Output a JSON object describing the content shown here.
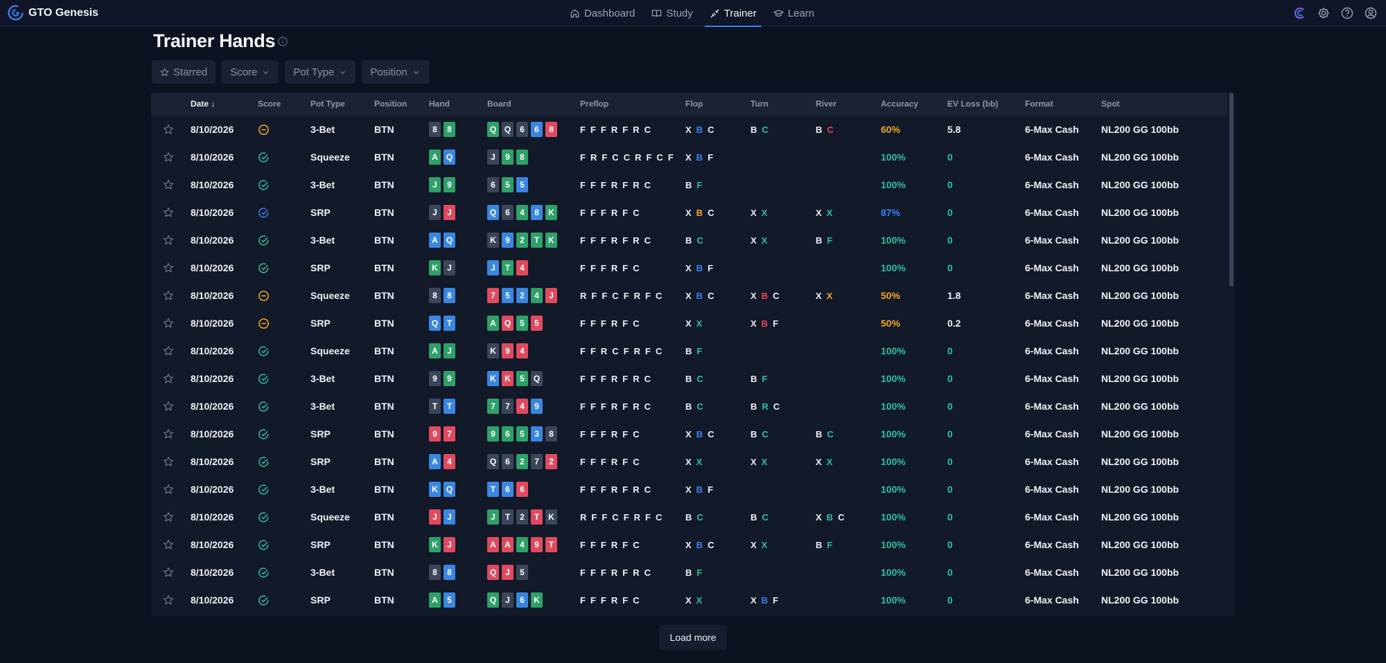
{
  "app": {
    "name": "GTO Genesis"
  },
  "nav": [
    {
      "label": "Dashboard",
      "icon": "home-icon",
      "active": false
    },
    {
      "label": "Study",
      "icon": "book-icon",
      "active": false
    },
    {
      "label": "Trainer",
      "icon": "trainer-icon",
      "active": true
    },
    {
      "label": "Learn",
      "icon": "graduation-cap-icon",
      "active": false
    }
  ],
  "top_icons": [
    "gto-logo-icon",
    "gear-icon",
    "help-icon",
    "user-icon"
  ],
  "page": {
    "title": "Trainer Hands"
  },
  "filters": [
    {
      "label": "Starred",
      "icon": "star-icon"
    },
    {
      "label": "Score",
      "icon": "chevron-down-icon"
    },
    {
      "label": "Pot Type",
      "icon": "chevron-down-icon"
    },
    {
      "label": "Position",
      "icon": "chevron-down-icon"
    }
  ],
  "columns": [
    "Date",
    "Score",
    "Pot Type",
    "Position",
    "Hand",
    "Board",
    "Preflop",
    "Flop",
    "Turn",
    "River",
    "Accuracy",
    "EV Loss (bb)",
    "Format",
    "Spot"
  ],
  "sort": {
    "column": "Date",
    "direction": "desc"
  },
  "colors": {
    "green": "#2fa069",
    "blue": "#3a86e0",
    "red": "#e04a5e",
    "dark": "#3b4659",
    "accent": "#3b82f6",
    "good": "#2cc1a6",
    "warn": "#f5a623"
  },
  "rows": [
    {
      "date": "8/10/2026",
      "score": "meh",
      "pot": "3-Bet",
      "pos": "BTN",
      "hand": [
        "8d",
        "8g"
      ],
      "board": [
        "Qg",
        "Qd",
        "6d",
        "6b",
        "8r"
      ],
      "preflop": "F F F R F R C",
      "flop": "X B C",
      "turn": "B C",
      "river": "B C",
      "acc": "60%",
      "acc_tone": "warn",
      "ev": "5.8",
      "fmt": "6-Max Cash",
      "spot": "NL200 GG 100bb"
    },
    {
      "date": "8/10/2026",
      "score": "good",
      "pot": "Squeeze",
      "pos": "BTN",
      "hand": [
        "Ag",
        "Qb"
      ],
      "board": [
        "Jd",
        "9g",
        "8g"
      ],
      "preflop": "F R F C C R F C F",
      "flop": "X B F",
      "turn": "",
      "river": "",
      "acc": "100%",
      "acc_tone": "good",
      "ev": "0",
      "fmt": "6-Max Cash",
      "spot": "NL200 GG 100bb"
    },
    {
      "date": "8/10/2026",
      "score": "good",
      "pot": "3-Bet",
      "pos": "BTN",
      "hand": [
        "Jg",
        "9g"
      ],
      "board": [
        "6d",
        "5g",
        "5b"
      ],
      "preflop": "F F F R F R C",
      "flop": "B F",
      "turn": "",
      "river": "",
      "acc": "100%",
      "acc_tone": "good",
      "ev": "0",
      "fmt": "6-Max Cash",
      "spot": "NL200 GG 100bb"
    },
    {
      "date": "8/10/2026",
      "score": "ok",
      "pot": "SRP",
      "pos": "BTN",
      "hand": [
        "Jd",
        "Jr"
      ],
      "board": [
        "Qb",
        "6d",
        "4g",
        "8b",
        "Kg"
      ],
      "preflop": "F F F R F C",
      "flop": "X B C",
      "turn": "X X",
      "river": "X X",
      "acc": "87%",
      "acc_tone": "blue",
      "ev": "0",
      "fmt": "6-Max Cash",
      "spot": "NL200 GG 100bb"
    },
    {
      "date": "8/10/2026",
      "score": "good",
      "pot": "3-Bet",
      "pos": "BTN",
      "hand": [
        "Ab",
        "Qb"
      ],
      "board": [
        "Kd",
        "9b",
        "2g",
        "Tg",
        "Kg"
      ],
      "preflop": "F F F R F R C",
      "flop": "B C",
      "turn": "X X",
      "river": "B F",
      "acc": "100%",
      "acc_tone": "good",
      "ev": "0",
      "fmt": "6-Max Cash",
      "spot": "NL200 GG 100bb"
    },
    {
      "date": "8/10/2026",
      "score": "good",
      "pot": "SRP",
      "pos": "BTN",
      "hand": [
        "Kg",
        "Jd"
      ],
      "board": [
        "Jb",
        "Tg",
        "4r"
      ],
      "preflop": "F F F R F C",
      "flop": "X B F",
      "turn": "",
      "river": "",
      "acc": "100%",
      "acc_tone": "good",
      "ev": "0",
      "fmt": "6-Max Cash",
      "spot": "NL200 GG 100bb"
    },
    {
      "date": "8/10/2026",
      "score": "meh",
      "pot": "Squeeze",
      "pos": "BTN",
      "hand": [
        "8d",
        "8b"
      ],
      "board": [
        "7r",
        "5b",
        "2b",
        "4g",
        "Jr"
      ],
      "preflop": "R F F C F R F C",
      "flop": "X B C",
      "turn": "X B C",
      "river": "X X",
      "acc": "50%",
      "acc_tone": "warn",
      "ev": "1.8",
      "fmt": "6-Max Cash",
      "spot": "NL200 GG 100bb"
    },
    {
      "date": "8/10/2026",
      "score": "meh",
      "pot": "SRP",
      "pos": "BTN",
      "hand": [
        "Qb",
        "Tb"
      ],
      "board": [
        "Ag",
        "Qr",
        "5g",
        "5r"
      ],
      "preflop": "F F F R F C",
      "flop": "X X",
      "turn": "X B F",
      "river": "",
      "acc": "50%",
      "acc_tone": "warn",
      "ev": "0.2",
      "fmt": "6-Max Cash",
      "spot": "NL200 GG 100bb"
    },
    {
      "date": "8/10/2026",
      "score": "good",
      "pot": "Squeeze",
      "pos": "BTN",
      "hand": [
        "Ag",
        "Jg"
      ],
      "board": [
        "Kd",
        "9r",
        "4r"
      ],
      "preflop": "F F R C F R F C",
      "flop": "B F",
      "turn": "",
      "river": "",
      "acc": "100%",
      "acc_tone": "good",
      "ev": "0",
      "fmt": "6-Max Cash",
      "spot": "NL200 GG 100bb"
    },
    {
      "date": "8/10/2026",
      "score": "good",
      "pot": "3-Bet",
      "pos": "BTN",
      "hand": [
        "9d",
        "9g"
      ],
      "board": [
        "Kb",
        "Kr",
        "5g",
        "Qd"
      ],
      "preflop": "F F F R F R C",
      "flop": "B C",
      "turn": "B F",
      "river": "",
      "acc": "100%",
      "acc_tone": "good",
      "ev": "0",
      "fmt": "6-Max Cash",
      "spot": "NL200 GG 100bb"
    },
    {
      "date": "8/10/2026",
      "score": "good",
      "pot": "3-Bet",
      "pos": "BTN",
      "hand": [
        "Td",
        "Tb"
      ],
      "board": [
        "7g",
        "7d",
        "4r",
        "9b"
      ],
      "preflop": "F F F R F R C",
      "flop": "B C",
      "turn": "B R C",
      "river": "",
      "acc": "100%",
      "acc_tone": "good",
      "ev": "0",
      "fmt": "6-Max Cash",
      "spot": "NL200 GG 100bb"
    },
    {
      "date": "8/10/2026",
      "score": "good",
      "pot": "SRP",
      "pos": "BTN",
      "hand": [
        "9r",
        "7r"
      ],
      "board": [
        "9g",
        "6g",
        "5g",
        "3b",
        "8d"
      ],
      "preflop": "F F F R F C",
      "flop": "X B C",
      "turn": "B C",
      "river": "B C",
      "acc": "100%",
      "acc_tone": "good",
      "ev": "0",
      "fmt": "6-Max Cash",
      "spot": "NL200 GG 100bb"
    },
    {
      "date": "8/10/2026",
      "score": "good",
      "pot": "SRP",
      "pos": "BTN",
      "hand": [
        "Ab",
        "4r"
      ],
      "board": [
        "Qd",
        "6d",
        "2g",
        "7d",
        "2r"
      ],
      "preflop": "F F F R F C",
      "flop": "X X",
      "turn": "X X",
      "river": "X X",
      "acc": "100%",
      "acc_tone": "good",
      "ev": "0",
      "fmt": "6-Max Cash",
      "spot": "NL200 GG 100bb"
    },
    {
      "date": "8/10/2026",
      "score": "good",
      "pot": "3-Bet",
      "pos": "BTN",
      "hand": [
        "Kb",
        "Qb"
      ],
      "board": [
        "Tb",
        "6b",
        "6r"
      ],
      "preflop": "F F F R F R C",
      "flop": "X B F",
      "turn": "",
      "river": "",
      "acc": "100%",
      "acc_tone": "good",
      "ev": "0",
      "fmt": "6-Max Cash",
      "spot": "NL200 GG 100bb"
    },
    {
      "date": "8/10/2026",
      "score": "good",
      "pot": "Squeeze",
      "pos": "BTN",
      "hand": [
        "Jr",
        "Jb"
      ],
      "board": [
        "Jg",
        "Td",
        "2d",
        "Tr",
        "Kd"
      ],
      "preflop": "R F F C F R F C",
      "flop": "B C",
      "turn": "B C",
      "river": "X B C",
      "acc": "100%",
      "acc_tone": "good",
      "ev": "0",
      "fmt": "6-Max Cash",
      "spot": "NL200 GG 100bb"
    },
    {
      "date": "8/10/2026",
      "score": "good",
      "pot": "SRP",
      "pos": "BTN",
      "hand": [
        "Kg",
        "Jr"
      ],
      "board": [
        "Ar",
        "Ar",
        "4g",
        "9r",
        "Tr"
      ],
      "preflop": "F F F R F C",
      "flop": "X B C",
      "turn": "X X",
      "river": "B F",
      "acc": "100%",
      "acc_tone": "good",
      "ev": "0",
      "fmt": "6-Max Cash",
      "spot": "NL200 GG 100bb"
    },
    {
      "date": "8/10/2026",
      "score": "good",
      "pot": "3-Bet",
      "pos": "BTN",
      "hand": [
        "8d",
        "8b"
      ],
      "board": [
        "Qr",
        "Jr",
        "5d"
      ],
      "preflop": "F F F R F R C",
      "flop": "B F",
      "turn": "",
      "river": "",
      "acc": "100%",
      "acc_tone": "good",
      "ev": "0",
      "fmt": "6-Max Cash",
      "spot": "NL200 GG 100bb"
    },
    {
      "date": "8/10/2026",
      "score": "good",
      "pot": "SRP",
      "pos": "BTN",
      "hand": [
        "Ag",
        "5b"
      ],
      "board": [
        "Qg",
        "Jd",
        "6b",
        "Kg"
      ],
      "preflop": "F F F R F C",
      "flop": "X X",
      "turn": "X B F",
      "river": "",
      "acc": "100%",
      "acc_tone": "good",
      "ev": "0",
      "fmt": "6-Max Cash",
      "spot": "NL200 GG 100bb"
    }
  ],
  "footer": {
    "load_more": "Load more"
  }
}
